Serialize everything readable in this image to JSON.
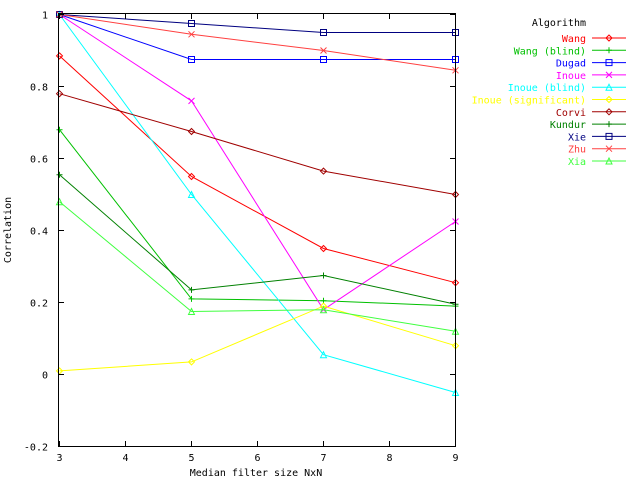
{
  "chart_data": {
    "type": "line",
    "title": "",
    "xlabel": "Median filter size NxN",
    "ylabel": "Correlation",
    "xlim": [
      3,
      9
    ],
    "ylim": [
      -0.2,
      1
    ],
    "xticks": [
      "3",
      "4",
      "5",
      "6",
      "7",
      "8",
      "9"
    ],
    "yticks": [
      "-0.2",
      "0",
      "0.2",
      "0.4",
      "0.6",
      "0.8",
      "1"
    ],
    "grid": false,
    "legend": {
      "title": "Algorithm",
      "placement": "top-right outside"
    },
    "x": [
      3,
      5,
      7,
      9
    ],
    "series": [
      {
        "name": "Wang",
        "color": "#ff0000",
        "marker": "diamond",
        "values": [
          0.885,
          0.55,
          0.35,
          0.255
        ]
      },
      {
        "name": "Wang (blind)",
        "color": "#00c000",
        "marker": "plus",
        "values": [
          0.68,
          0.21,
          0.205,
          0.19
        ]
      },
      {
        "name": "Dugad",
        "color": "#0000ff",
        "marker": "square",
        "values": [
          1.0,
          0.875,
          0.875,
          0.875
        ]
      },
      {
        "name": "Inoue",
        "color": "#ff00ff",
        "marker": "cross",
        "values": [
          1.0,
          0.76,
          0.18,
          0.425
        ]
      },
      {
        "name": "Inoue (blind)",
        "color": "#00ffff",
        "marker": "triangle",
        "values": [
          1.0,
          0.5,
          0.055,
          -0.05
        ]
      },
      {
        "name": "Inoue (significant)",
        "color": "#ffff00",
        "marker": "diamond",
        "values": [
          0.01,
          0.035,
          0.19,
          0.08
        ]
      },
      {
        "name": "Corvi",
        "color": "#a00000",
        "marker": "diamond",
        "values": [
          0.78,
          0.675,
          0.565,
          0.5
        ]
      },
      {
        "name": "Kundur",
        "color": "#008000",
        "marker": "plus",
        "values": [
          0.555,
          0.235,
          0.275,
          0.195
        ]
      },
      {
        "name": "Xie",
        "color": "#000080",
        "marker": "square",
        "values": [
          1.0,
          0.975,
          0.95,
          0.95
        ]
      },
      {
        "name": "Zhu",
        "color": "#ff4040",
        "marker": "cross",
        "values": [
          1.0,
          0.945,
          0.9,
          0.845
        ]
      },
      {
        "name": "Xia",
        "color": "#40ff40",
        "marker": "triangle",
        "values": [
          0.48,
          0.175,
          0.18,
          0.12
        ]
      }
    ]
  }
}
